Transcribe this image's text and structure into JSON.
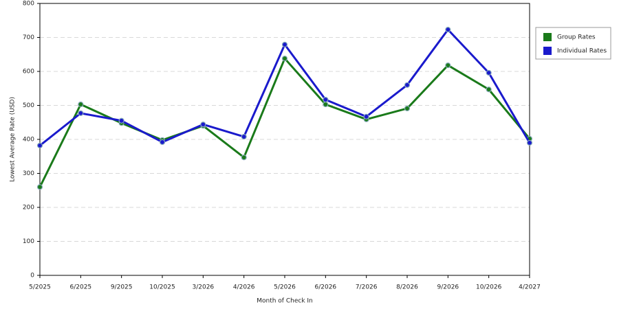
{
  "chart_data": {
    "type": "line",
    "x_label": "Month of Check In",
    "y_label": "Lowest Average Rate (USD)",
    "categories": [
      "5/2025",
      "6/2025",
      "9/2025",
      "10/2025",
      "3/2026",
      "4/2026",
      "5/2026",
      "6/2026",
      "7/2026",
      "8/2026",
      "9/2026",
      "10/2026",
      "4/2027"
    ],
    "series": [
      {
        "name": "Group Rates",
        "color": "#1a7a1a",
        "values": [
          260,
          503,
          448,
          398,
          440,
          347,
          638,
          503,
          459,
          491,
          618,
          547,
          402
        ]
      },
      {
        "name": "Individual Rates",
        "color": "#1a1acc",
        "values": [
          382,
          477,
          455,
          392,
          444,
          408,
          679,
          517,
          467,
          560,
          723,
          596,
          390
        ]
      }
    ],
    "ylim": [
      0,
      800
    ],
    "yticks": [
      0,
      100,
      200,
      300,
      400,
      500,
      600,
      700,
      800
    ],
    "grid": true,
    "legend": "right"
  }
}
